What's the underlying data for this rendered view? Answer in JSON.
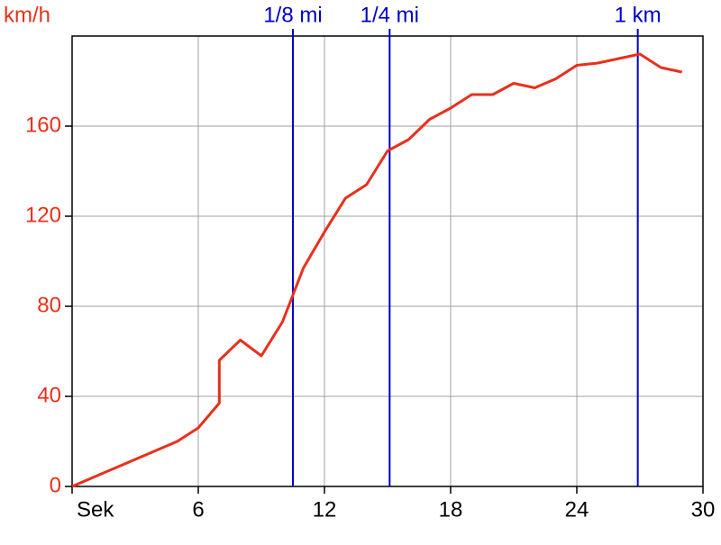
{
  "chart_data": {
    "type": "line",
    "y_label": "km/h",
    "x": [
      0,
      5,
      6,
      7,
      7,
      8,
      9,
      10,
      11,
      12,
      13,
      14,
      15,
      16,
      17,
      18,
      19,
      20,
      21,
      22,
      23,
      24,
      25,
      26,
      27,
      28,
      29
    ],
    "series": [
      {
        "color": "#e8301c",
        "values": [
          0,
          20,
          26,
          37,
          56,
          65,
          58,
          73,
          97,
          113,
          128,
          134,
          149,
          154,
          163,
          168,
          174,
          174,
          179,
          177,
          181,
          187,
          188,
          190,
          192,
          186,
          184
        ]
      }
    ],
    "xlim": [
      0,
      30
    ],
    "xticks": [
      {
        "value": 0,
        "label": "Sek"
      },
      6,
      12,
      18,
      24,
      30
    ],
    "ylim": [
      0,
      200
    ],
    "yticks": [
      0,
      40,
      80,
      120,
      160
    ],
    "grid": true,
    "tick_color": "#e8301c",
    "markers": [
      {
        "label": "1/8 mi",
        "x": 10.5
      },
      {
        "label": "1/4 mi",
        "x": 15.1
      },
      {
        "label": "1 km",
        "x": 26.9
      }
    ],
    "marker_color": "#0000c8"
  }
}
